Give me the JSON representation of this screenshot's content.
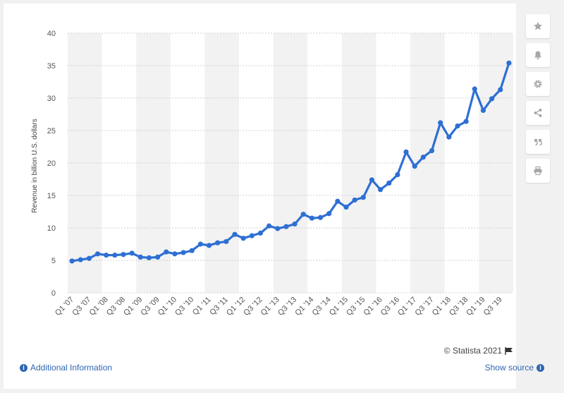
{
  "colors": {
    "line": "#2e6fd4",
    "band": "#f2f2f2",
    "grid": "#d0d0d0",
    "link": "#2f66b3",
    "icon": "#a8a8a8"
  },
  "toolbar": {
    "items": [
      {
        "icon": "star-icon"
      },
      {
        "icon": "bell-icon"
      },
      {
        "icon": "gear-icon"
      },
      {
        "icon": "share-icon"
      },
      {
        "icon": "quote-icon"
      },
      {
        "icon": "print-icon"
      }
    ]
  },
  "footer": {
    "credit": "© Statista 2021",
    "additional_info": "Additional Information",
    "show_source": "Show source"
  },
  "chart_data": {
    "type": "line",
    "ylabel": "Revenue in billion U.S. dollars",
    "xlabel": "",
    "ylim": [
      0,
      40
    ],
    "yticks": [
      0,
      5,
      10,
      15,
      20,
      25,
      30,
      35,
      40
    ],
    "grid": true,
    "categories": [
      "Q1 '07",
      "Q2 '07",
      "Q3 '07",
      "Q4 '07",
      "Q1 '08",
      "Q2 '08",
      "Q3 '08",
      "Q4 '08",
      "Q1 '09",
      "Q2 '09",
      "Q3 '09",
      "Q4 '09",
      "Q1 '10",
      "Q2 '10",
      "Q3 '10",
      "Q4 '10",
      "Q1 '11",
      "Q2 '11",
      "Q3 '11",
      "Q4 '11",
      "Q1 '12",
      "Q2 '12",
      "Q3 '12",
      "Q4 '12",
      "Q1 '13",
      "Q2 '13",
      "Q3 '13",
      "Q4 '13",
      "Q1 '14",
      "Q2 '14",
      "Q3 '14",
      "Q4 '14",
      "Q1 '15",
      "Q2 '15",
      "Q3 '15",
      "Q4 '15",
      "Q1 '16",
      "Q2 '16",
      "Q3 '16",
      "Q4 '16",
      "Q1 '17",
      "Q2 '17",
      "Q3 '17",
      "Q4 '17",
      "Q1 '18",
      "Q2 '18",
      "Q3 '18",
      "Q4 '18",
      "Q1 '19",
      "Q2 '19",
      "Q3 '19",
      "Q4 '19"
    ],
    "tick_labels": [
      "Q1 '07",
      "Q3 '07",
      "Q1 '08",
      "Q3 '08",
      "Q1 '09",
      "Q3 '09",
      "Q1 '10",
      "Q3 '10",
      "Q1 '11",
      "Q3 '11",
      "Q1 '12",
      "Q3 '12",
      "Q1 '13",
      "Q3 '13",
      "Q1 '14",
      "Q3 '14",
      "Q1 '15",
      "Q3 '15",
      "Q1 '16",
      "Q3 '16",
      "Q1 '17",
      "Q3 '17",
      "Q1 '18",
      "Q3 '18",
      "Q1 '19",
      "Q3 '19"
    ],
    "series": [
      {
        "values": [
          4.9,
          5.1,
          5.3,
          6.0,
          5.8,
          5.8,
          5.9,
          6.1,
          5.5,
          5.4,
          5.5,
          6.3,
          6.0,
          6.2,
          6.5,
          7.5,
          7.3,
          7.7,
          7.9,
          9.0,
          8.4,
          8.8,
          9.2,
          10.3,
          9.9,
          10.2,
          10.6,
          12.1,
          11.5,
          11.6,
          12.2,
          14.1,
          13.2,
          14.3,
          14.7,
          17.4,
          15.9,
          16.9,
          18.2,
          21.7,
          19.5,
          20.9,
          21.9,
          26.2,
          24.0,
          25.7,
          26.4,
          31.4,
          28.1,
          29.9,
          31.3,
          35.4
        ]
      }
    ]
  }
}
